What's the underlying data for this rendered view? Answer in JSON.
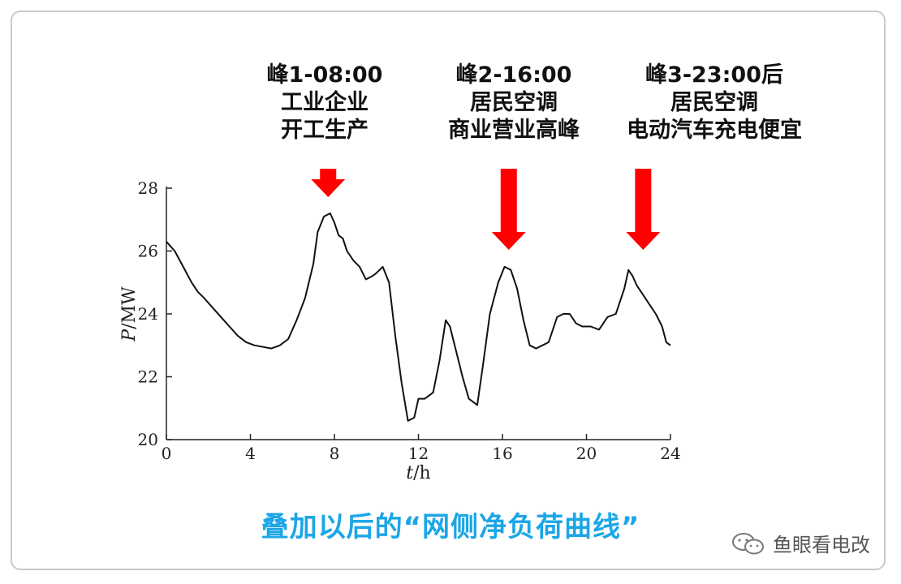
{
  "peaks": [
    {
      "lines": [
        "峰1-08:00",
        "工业企业",
        "开工生产"
      ]
    },
    {
      "lines": [
        "峰2-16:00",
        "居民空调",
        "商业营业高峰"
      ]
    },
    {
      "lines": [
        "峰3-23:00后",
        "居民空调",
        "电动汽车充电便宜"
      ]
    }
  ],
  "caption": "叠加以后的“网侧净负荷曲线”",
  "watermark": "鱼眼看电改",
  "colors": {
    "arrow": "#ff0000",
    "caption": "#1ba6e6",
    "line": "#111111"
  },
  "chart_data": {
    "type": "line",
    "xlabel_italic": "t",
    "xlabel_unit": "/h",
    "ylabel_italic": "P",
    "ylabel_unit": "/MW",
    "xlim": [
      0,
      24
    ],
    "ylim": [
      20,
      28
    ],
    "xticks": [
      0,
      4,
      8,
      12,
      16,
      20,
      24
    ],
    "yticks": [
      20,
      22,
      24,
      26,
      28
    ],
    "arrows_at_x": [
      7.7,
      16.3,
      22.7
    ],
    "series": [
      {
        "x": [
          0,
          0.4,
          0.8,
          1.2,
          1.5,
          1.8,
          2.2,
          2.6,
          3.0,
          3.4,
          3.8,
          4.2,
          4.6,
          5.0,
          5.4,
          5.8,
          6.2,
          6.6,
          7.0,
          7.2,
          7.5,
          7.8,
          8.0,
          8.2,
          8.4,
          8.6,
          8.9,
          9.2,
          9.5,
          9.8,
          10.0,
          10.3,
          10.6,
          10.9,
          11.2,
          11.5,
          11.8,
          12.0,
          12.3,
          12.7,
          13.0,
          13.3,
          13.5,
          13.8,
          14.1,
          14.4,
          14.8,
          15.1,
          15.4,
          15.8,
          16.1,
          16.4,
          16.7,
          17.0,
          17.3,
          17.6,
          17.9,
          18.2,
          18.6,
          18.9,
          19.2,
          19.5,
          19.8,
          20.2,
          20.6,
          21.0,
          21.4,
          21.8,
          22.0,
          22.2,
          22.4,
          22.7,
          23.0,
          23.3,
          23.6,
          23.8,
          24.0
        ],
        "y": [
          26.3,
          26.0,
          25.5,
          25.0,
          24.7,
          24.5,
          24.2,
          23.9,
          23.6,
          23.3,
          23.1,
          23.0,
          22.95,
          22.9,
          23.0,
          23.2,
          23.8,
          24.5,
          25.6,
          26.6,
          27.1,
          27.2,
          26.9,
          26.5,
          26.4,
          26.0,
          25.7,
          25.5,
          25.1,
          25.2,
          25.3,
          25.5,
          25.0,
          23.3,
          21.8,
          20.6,
          20.7,
          21.3,
          21.3,
          21.5,
          22.5,
          23.8,
          23.6,
          22.8,
          22.0,
          21.3,
          21.1,
          22.5,
          24.0,
          25.0,
          25.5,
          25.4,
          24.8,
          23.8,
          23.0,
          22.9,
          23.0,
          23.1,
          23.9,
          24.0,
          24.0,
          23.7,
          23.6,
          23.6,
          23.5,
          23.9,
          24.0,
          24.8,
          25.4,
          25.2,
          24.9,
          24.6,
          24.3,
          24.0,
          23.6,
          23.1,
          23.0
        ]
      }
    ]
  }
}
